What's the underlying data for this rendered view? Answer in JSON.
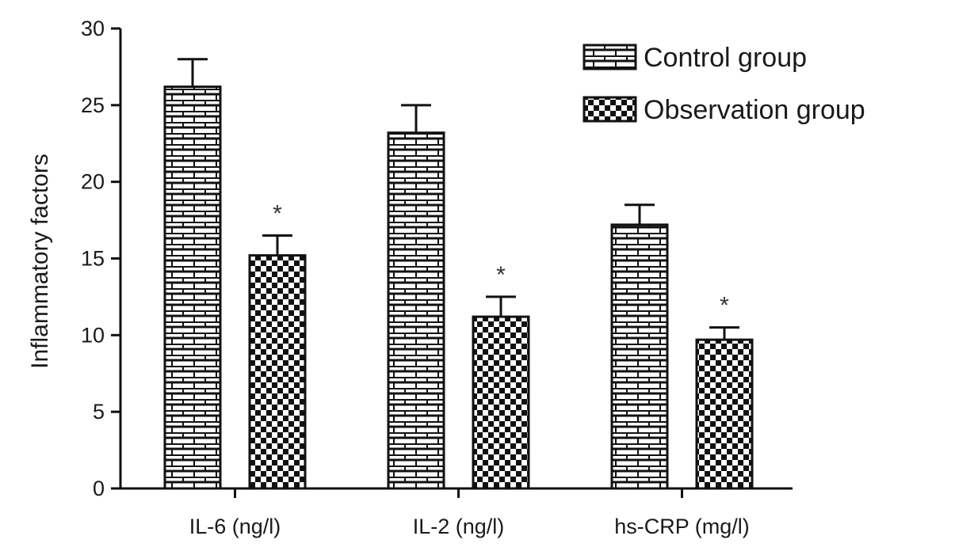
{
  "chart_data": {
    "type": "bar",
    "categories": [
      "IL-6 (ng/l)",
      "IL-2 (ng/l)",
      "hs-CRP (mg/l)"
    ],
    "series": [
      {
        "name": "Control group",
        "values": [
          26.2,
          23.2,
          17.2
        ],
        "errors": [
          1.8,
          1.8,
          1.3
        ],
        "pattern": "brick"
      },
      {
        "name": "Observation group",
        "values": [
          15.2,
          11.2,
          9.7
        ],
        "errors": [
          1.3,
          1.3,
          0.8
        ],
        "pattern": "checker"
      }
    ],
    "significance_marks": [
      "",
      "*"
    ],
    "title": "",
    "xlabel": "",
    "ylabel": "Inflammatory factors",
    "ylim": [
      0,
      30
    ],
    "yticks": [
      0,
      5,
      10,
      15,
      20,
      25,
      30
    ],
    "grid": false,
    "legend_position": "top-right",
    "colors": {
      "ink": "#111111",
      "fill": "#ffffff"
    }
  }
}
